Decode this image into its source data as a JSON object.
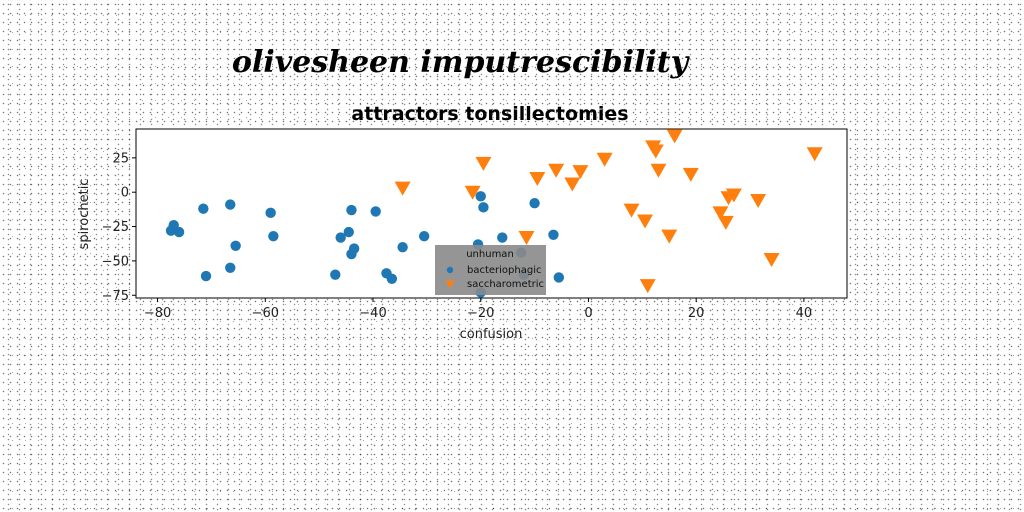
{
  "suptitle": "olivesheen imputrescibility",
  "chart_data": {
    "type": "scatter",
    "title": "attractors tonsillectomies",
    "xlabel": "confusion",
    "ylabel": "spirochetic",
    "xlim": [
      -84,
      48
    ],
    "ylim": [
      -77,
      46
    ],
    "xticks": [
      -80,
      -60,
      -40,
      -20,
      0,
      20,
      40
    ],
    "yticks": [
      -75,
      -50,
      -25,
      0,
      25
    ],
    "grid": false,
    "legend": {
      "title": "unhuman",
      "placement": "lower-center"
    },
    "series": [
      {
        "name": "bacteriophagic",
        "marker": "circle",
        "color": "#1f77b4",
        "points": [
          [
            -77,
            -24
          ],
          [
            -77.5,
            -28
          ],
          [
            -76,
            -29
          ],
          [
            -71.5,
            -12
          ],
          [
            -71,
            -61
          ],
          [
            -66.5,
            -9
          ],
          [
            -66.5,
            -55
          ],
          [
            -65.5,
            -39
          ],
          [
            -59,
            -15
          ],
          [
            -58.5,
            -32
          ],
          [
            -47,
            -60
          ],
          [
            -46,
            -33
          ],
          [
            -44.5,
            -29
          ],
          [
            -44,
            -13
          ],
          [
            -44,
            -45
          ],
          [
            -43.5,
            -41
          ],
          [
            -39.5,
            -14
          ],
          [
            -37.5,
            -59
          ],
          [
            -36.5,
            -63
          ],
          [
            -34.5,
            -40
          ],
          [
            -30.5,
            -32
          ],
          [
            -20.5,
            -38
          ],
          [
            -20,
            -3
          ],
          [
            -19.5,
            -11
          ],
          [
            -16,
            -33
          ],
          [
            -12.5,
            -44
          ],
          [
            -12,
            -60
          ],
          [
            -10,
            -8
          ],
          [
            -6.5,
            -31
          ],
          [
            -5.5,
            -62
          ],
          [
            -20,
            -73
          ]
        ]
      },
      {
        "name": "saccharometric",
        "marker": "triangle-down",
        "color": "#ff7f0e",
        "points": [
          [
            -34.5,
            3
          ],
          [
            -21.5,
            0
          ],
          [
            -19.5,
            21
          ],
          [
            -11.5,
            -33
          ],
          [
            -9.5,
            10
          ],
          [
            -6,
            16
          ],
          [
            -3,
            6
          ],
          [
            -1.5,
            15
          ],
          [
            3,
            24
          ],
          [
            8,
            -13
          ],
          [
            10.5,
            -21
          ],
          [
            11,
            -68
          ],
          [
            12,
            33
          ],
          [
            12.5,
            30
          ],
          [
            13,
            16
          ],
          [
            15,
            -32
          ],
          [
            16,
            41
          ],
          [
            19,
            13
          ],
          [
            24.5,
            -15
          ],
          [
            25.5,
            -22
          ],
          [
            26,
            -4
          ],
          [
            27,
            -2
          ],
          [
            31.5,
            -6
          ],
          [
            34,
            -49
          ],
          [
            42,
            28
          ]
        ]
      }
    ]
  }
}
